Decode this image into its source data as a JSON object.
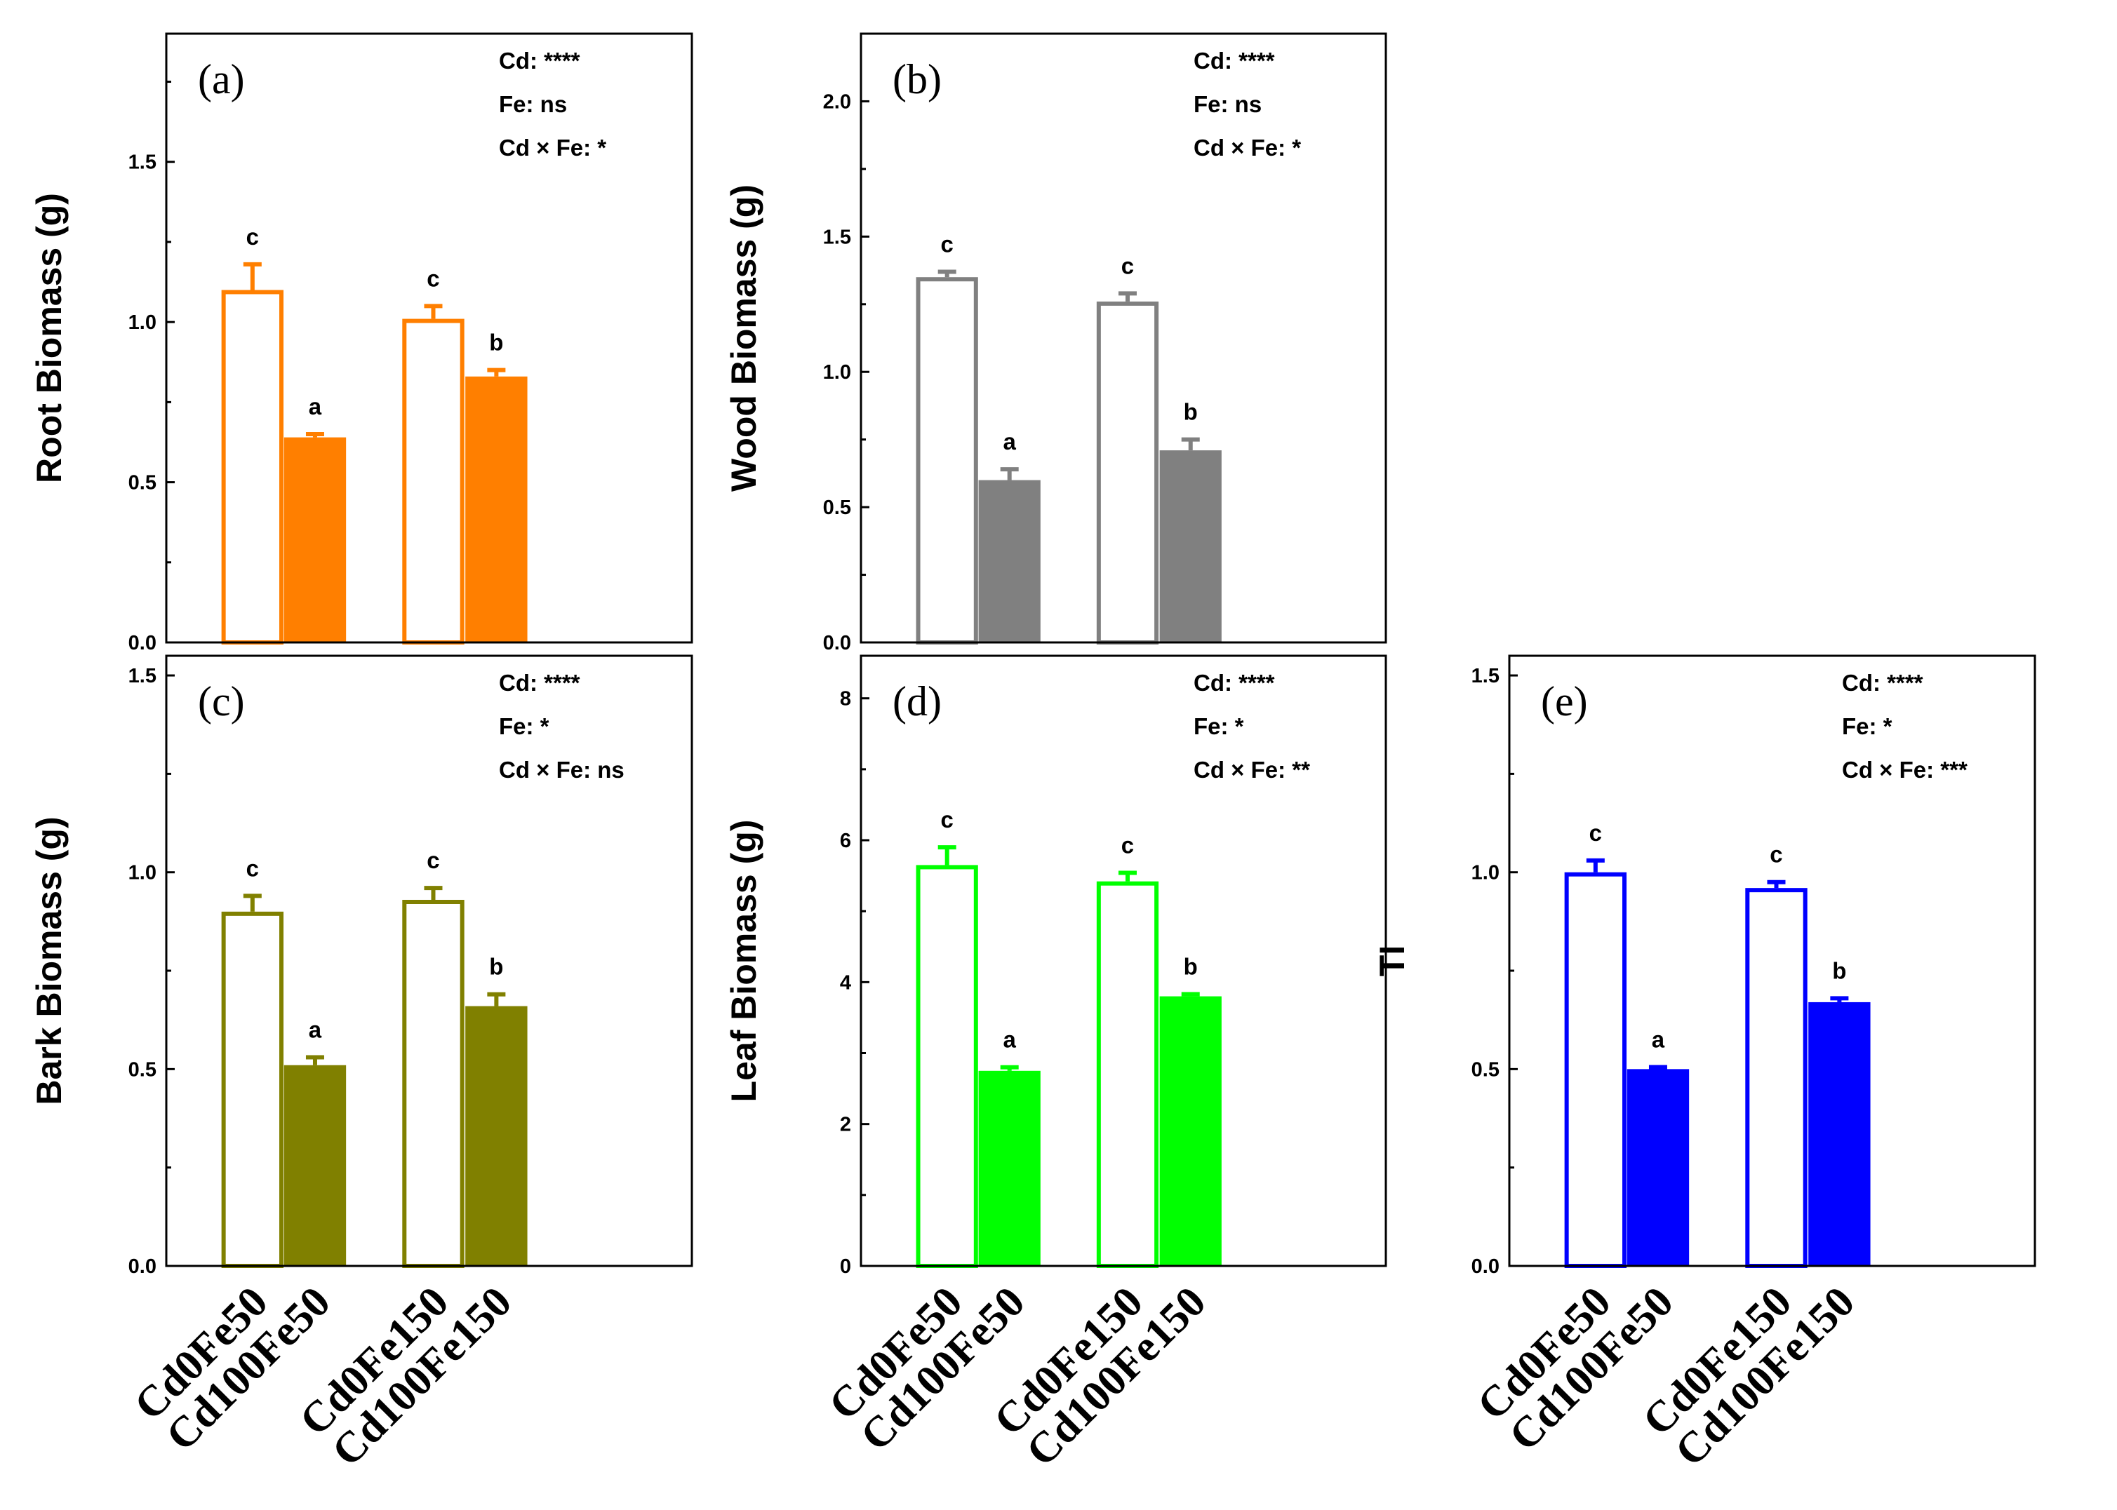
{
  "chart_data": [
    {
      "type": "bar",
      "panel_label": "(a)",
      "ylabel": "Root Biomass (g)",
      "ylim": [
        0,
        1.9
      ],
      "yticks": [
        0.0,
        0.5,
        1.0,
        1.5
      ],
      "tick_labels": [
        "0.0",
        "0.5",
        "1.0",
        "1.5"
      ],
      "color": "#ff7f00",
      "stats": [
        "Cd: ****",
        "Fe: ns",
        "Cd × Fe: *"
      ],
      "categories": [
        "Cd0Fe50",
        "Cd100Fe50",
        "Cd0Fe150",
        "Cd100Fe150"
      ],
      "values": [
        1.1,
        0.64,
        1.01,
        0.83
      ],
      "errors": [
        0.08,
        0.01,
        0.04,
        0.02
      ],
      "letters": [
        "c",
        "a",
        "c",
        "b"
      ]
    },
    {
      "type": "bar",
      "panel_label": "(b)",
      "ylabel": "Wood Biomass (g)",
      "ylim": [
        0,
        2.25
      ],
      "yticks": [
        0.0,
        0.5,
        1.0,
        1.5,
        2.0
      ],
      "tick_labels": [
        "0.0",
        "0.5",
        "1.0",
        "1.5",
        "2.0"
      ],
      "color": "#808080",
      "stats": [
        "Cd: ****",
        "Fe: ns",
        "Cd × Fe: *"
      ],
      "categories": [
        "Cd0Fe50",
        "Cd100Fe50",
        "Cd0Fe150",
        "Cd100Fe150"
      ],
      "values": [
        1.35,
        0.6,
        1.26,
        0.71
      ],
      "errors": [
        0.02,
        0.04,
        0.03,
        0.04
      ],
      "letters": [
        "c",
        "a",
        "c",
        "b"
      ]
    },
    {
      "type": "bar",
      "panel_label": "(c)",
      "ylabel": "Bark Biomass (g)",
      "ylim": [
        0,
        1.55
      ],
      "yticks": [
        0.0,
        0.5,
        1.0,
        1.5
      ],
      "tick_labels": [
        "0.0",
        "0.5",
        "1.0",
        "1.5"
      ],
      "color": "#808000",
      "stats": [
        "Cd: ****",
        "Fe: *",
        "Cd × Fe: ns"
      ],
      "categories": [
        "Cd0Fe50",
        "Cd100Fe50",
        "Cd0Fe150",
        "Cd100Fe150"
      ],
      "values": [
        0.9,
        0.51,
        0.93,
        0.66
      ],
      "errors": [
        0.04,
        0.02,
        0.03,
        0.03
      ],
      "letters": [
        "c",
        "a",
        "c",
        "b"
      ]
    },
    {
      "type": "bar",
      "panel_label": "(d)",
      "ylabel": "Leaf Biomass (g)",
      "ylim": [
        0,
        8.6
      ],
      "yticks": [
        0,
        2,
        4,
        6,
        8
      ],
      "tick_labels": [
        "0",
        "2",
        "4",
        "6",
        "8"
      ],
      "color": "#00ff00",
      "stats": [
        "Cd: ****",
        "Fe: *",
        "Cd × Fe: **"
      ],
      "categories": [
        "Cd0Fe50",
        "Cd100Fe50",
        "Cd0Fe150",
        "Cd100Fe150"
      ],
      "values": [
        5.65,
        2.75,
        5.42,
        3.8
      ],
      "errors": [
        0.25,
        0.05,
        0.12,
        0.03
      ],
      "letters": [
        "c",
        "a",
        "c",
        "b"
      ]
    },
    {
      "type": "bar",
      "panel_label": "(e)",
      "ylabel": "TI",
      "ylim": [
        0,
        1.55
      ],
      "yticks": [
        0.0,
        0.5,
        1.0,
        1.5
      ],
      "tick_labels": [
        "0.0",
        "0.5",
        "1.0",
        "1.5"
      ],
      "color": "#0000ff",
      "stats": [
        "Cd: ****",
        "Fe: *",
        "Cd × Fe: ***"
      ],
      "categories": [
        "Cd0Fe50",
        "Cd100Fe50",
        "Cd0Fe150",
        "Cd100Fe150"
      ],
      "values": [
        1.0,
        0.5,
        0.96,
        0.67
      ],
      "errors": [
        0.03,
        0.005,
        0.015,
        0.01
      ],
      "letters": [
        "c",
        "a",
        "c",
        "b"
      ]
    }
  ]
}
